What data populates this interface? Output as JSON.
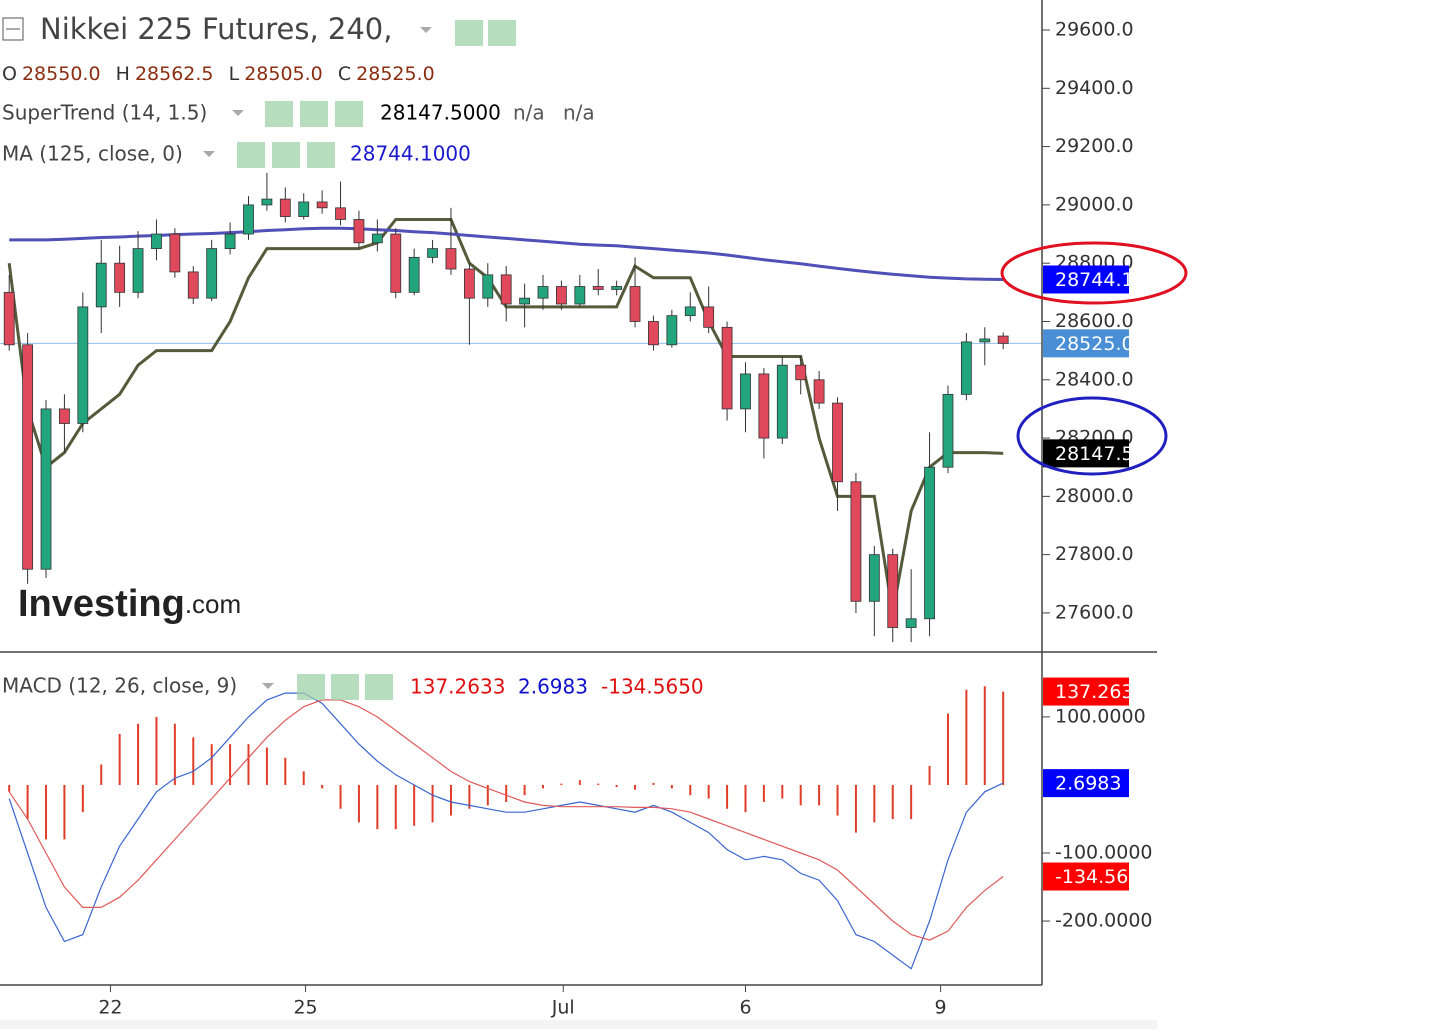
{
  "chart_data": [
    {
      "type": "candlestick",
      "title": "Nikkei 225 Futures, 240,",
      "ohlc": [
        [
          "O",
          "28550.0"
        ],
        [
          "H",
          "28562.5"
        ],
        [
          "L",
          "28505.0"
        ],
        [
          "C",
          "28525.0"
        ]
      ],
      "indicators": [
        {
          "name": "SuperTrend (14, 1.5)",
          "readouts": [
            "28147.5000",
            "n/a",
            "n/a"
          ],
          "readout_colors": [
            "#000000",
            "#555555",
            "#555555"
          ]
        },
        {
          "name": "MA (125, close, 0)",
          "readouts": [
            "28744.1000"
          ],
          "readout_colors": [
            "#1a1acc"
          ]
        }
      ],
      "watermark": [
        "Investing",
        ".com"
      ],
      "up_color": "#22a57c",
      "down_color": "#e0485c",
      "open": [
        28700,
        28520,
        27750,
        28300,
        28250,
        28650,
        28800,
        28700,
        28850,
        28900,
        28770,
        28680,
        28850,
        28900,
        29000,
        29020,
        28960,
        29010,
        28990,
        28950,
        28870,
        28900,
        28700,
        28820,
        28850,
        28780,
        28680,
        28760,
        28660,
        28680,
        28720,
        28660,
        28720,
        28710,
        28720,
        28600,
        28520,
        28620,
        28650,
        28580,
        28300,
        28420,
        28200,
        28450,
        28400,
        28320,
        28050,
        27640,
        27800,
        27550,
        27580,
        28100,
        28350,
        28530,
        28550
      ],
      "high": [
        28760,
        28560,
        28330,
        28350,
        28700,
        28880,
        28860,
        28910,
        28950,
        28920,
        28790,
        28880,
        28940,
        29030,
        29110,
        29060,
        29040,
        29050,
        29080,
        28980,
        28950,
        28920,
        28850,
        28880,
        28990,
        28800,
        28800,
        28790,
        28730,
        28760,
        28740,
        28760,
        28780,
        28740,
        28820,
        28620,
        28640,
        28700,
        28720,
        28600,
        28460,
        28440,
        28480,
        28480,
        28430,
        28340,
        28080,
        27830,
        27820,
        27750,
        28220,
        28380,
        28560,
        28580,
        28562.5
      ],
      "low": [
        28500,
        27700,
        27720,
        28150,
        28220,
        28560,
        28650,
        28680,
        28810,
        28750,
        28660,
        28670,
        28830,
        28880,
        28980,
        28940,
        28950,
        28970,
        28930,
        28850,
        28840,
        28680,
        28690,
        28800,
        28760,
        28520,
        28650,
        28600,
        28580,
        28640,
        28640,
        28650,
        28690,
        28690,
        28580,
        28500,
        28510,
        28600,
        28560,
        28260,
        28220,
        28130,
        28180,
        28350,
        28300,
        27950,
        27600,
        27520,
        27500,
        27500,
        27520,
        28080,
        28330,
        28450,
        28505
      ],
      "close": [
        28520,
        27750,
        28300,
        28250,
        28650,
        28800,
        28700,
        28850,
        28900,
        28770,
        28680,
        28850,
        28900,
        29000,
        29020,
        28960,
        29010,
        28990,
        28950,
        28870,
        28900,
        28700,
        28820,
        28850,
        28780,
        28680,
        28760,
        28660,
        28680,
        28720,
        28660,
        28720,
        28710,
        28720,
        28600,
        28520,
        28620,
        28650,
        28580,
        28300,
        28420,
        28200,
        28450,
        28400,
        28320,
        28050,
        27640,
        27800,
        27550,
        27580,
        28100,
        28350,
        28530,
        28540,
        28525
      ],
      "series": [
        {
          "name": "SuperTrend",
          "color": "#555a3a",
          "badge_color": "#000000",
          "last": {
            "value": 28147.5,
            "label": "28147.5"
          },
          "values": [
            28800,
            28300,
            28100,
            28150,
            28250,
            28300,
            28350,
            28450,
            28500,
            28500,
            28500,
            28500,
            28600,
            28750,
            28850,
            28850,
            28850,
            28850,
            28850,
            28850,
            28870,
            28950,
            28950,
            28950,
            28950,
            28800,
            28750,
            28650,
            28650,
            28650,
            28650,
            28650,
            28650,
            28650,
            28790,
            28750,
            28750,
            28750,
            28600,
            28480,
            28480,
            28480,
            28480,
            28480,
            28200,
            28000,
            28000,
            28000,
            27600,
            27950,
            28100,
            28150,
            28150,
            28150,
            28147.5
          ]
        },
        {
          "name": "MA",
          "color": "#5050b8",
          "badge_color": "#0000ff",
          "last": 28744.1,
          "values": [
            28880,
            28880,
            28880,
            28882,
            28885,
            28888,
            28890,
            28893,
            28895,
            28898,
            28900,
            28902,
            28905,
            28908,
            28912,
            28915,
            28918,
            28920,
            28920,
            28918,
            28915,
            28912,
            28908,
            28905,
            28900,
            28895,
            28890,
            28885,
            28880,
            28875,
            28870,
            28865,
            28862,
            28860,
            28855,
            28850,
            28845,
            28840,
            28835,
            28828,
            28820,
            28812,
            28805,
            28798,
            28790,
            28782,
            28775,
            28768,
            28762,
            28757,
            28752,
            28749,
            28746,
            28745,
            28744.1
          ]
        }
      ],
      "last_close": {
        "value": 28525,
        "label": "28525.0"
      },
      "last_close_color": "#4a8fd6",
      "xlim": [
        -0.5,
        56
      ],
      "ylim": [
        27466,
        29703
      ],
      "yticks": [
        {
          "value": 27600,
          "label": "27600.0"
        },
        {
          "value": 27800,
          "label": "27800.0"
        },
        {
          "value": 28000,
          "label": "28000.0"
        },
        {
          "value": 28200,
          "label": "28200.0"
        },
        {
          "value": 28400,
          "label": "28400.0"
        },
        {
          "value": 28600,
          "label": "28600.0"
        },
        {
          "value": 28800,
          "label": "28800.0"
        },
        {
          "value": 29000,
          "label": "29000.0"
        },
        {
          "value": 29200,
          "label": "29200.0"
        },
        {
          "value": 29400,
          "label": "29400.0"
        },
        {
          "value": 29600,
          "label": "29600.0"
        }
      ]
    },
    {
      "type": "macd",
      "title": "MACD (12, 26, close, 9)",
      "readouts": [
        "137.2633",
        "2.6983",
        "-134.5650"
      ],
      "readout_colors": [
        "#e01010",
        "#1010cc",
        "#e01010"
      ],
      "histogram": {
        "name": "Histogram",
        "color": "#e03c28",
        "badge_color": "#ff0000",
        "last": 137.2633,
        "values": [
          -10,
          -50,
          -80,
          -80,
          -40,
          30,
          75,
          90,
          100,
          90,
          70,
          60,
          60,
          60,
          55,
          40,
          20,
          -5,
          -35,
          -55,
          -65,
          -65,
          -60,
          -55,
          -45,
          -35,
          -30,
          -25,
          -15,
          -5,
          2,
          7,
          2,
          -3,
          -7,
          3,
          -5,
          -15,
          -20,
          -35,
          -40,
          -25,
          -20,
          -30,
          -30,
          -45,
          -70,
          -55,
          -50,
          -50,
          28,
          105,
          140,
          145,
          137.2633
        ]
      },
      "series": [
        {
          "name": "MACD",
          "color": "#3a66d0",
          "badge_color": "#0000ff",
          "last": 2.6983,
          "values": [
            -20,
            -100,
            -180,
            -230,
            -220,
            -150,
            -90,
            -50,
            -10,
            10,
            20,
            40,
            70,
            100,
            125,
            135,
            135,
            120,
            90,
            60,
            35,
            15,
            0,
            -15,
            -25,
            -30,
            -35,
            -40,
            -40,
            -35,
            -30,
            -25,
            -30,
            -35,
            -40,
            -30,
            -40,
            -55,
            -70,
            -95,
            -110,
            -105,
            -110,
            -130,
            -140,
            -170,
            -220,
            -230,
            -250,
            -270,
            -200,
            -110,
            -40,
            -10,
            2.6983
          ]
        },
        {
          "name": "Signal",
          "color": "#e05a5a",
          "badge_color": "#ff0000",
          "last": {
            "value": -134.565,
            "label": "-134.5650"
          },
          "values": [
            -10,
            -50,
            -100,
            -150,
            -180,
            -180,
            -165,
            -140,
            -110,
            -80,
            -50,
            -20,
            10,
            40,
            70,
            95,
            115,
            125,
            125,
            115,
            100,
            80,
            60,
            40,
            20,
            5,
            -5,
            -15,
            -25,
            -30,
            -32,
            -32,
            -32,
            -32,
            -33,
            -33,
            -35,
            -40,
            -50,
            -60,
            -70,
            -80,
            -90,
            -100,
            -110,
            -125,
            -150,
            -175,
            -200,
            -220,
            -228,
            -215,
            -180,
            -155,
            -134.565
          ]
        }
      ],
      "xlim": [
        -0.5,
        56
      ],
      "ylim": [
        -294,
        191
      ],
      "yticks": [
        {
          "value": 100,
          "label": "100.0000"
        },
        {
          "value": -100,
          "label": "-100.0000"
        },
        {
          "value": -200,
          "label": "-200.0000"
        }
      ],
      "xticks": [
        {
          "value": 5.5,
          "label": "22"
        },
        {
          "value": 16.1,
          "label": "25"
        },
        {
          "value": 30.1,
          "label": "Jul"
        },
        {
          "value": 40,
          "label": "6"
        },
        {
          "value": 50.6,
          "label": "9"
        }
      ]
    }
  ]
}
